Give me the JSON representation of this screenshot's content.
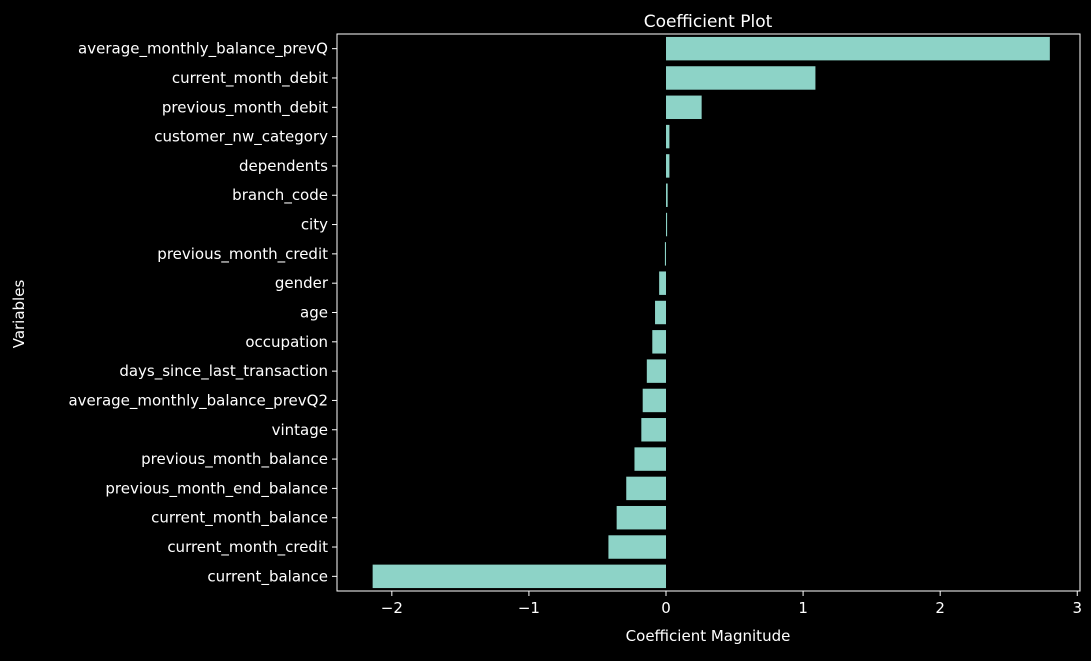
{
  "chart_data": {
    "type": "bar",
    "orientation": "horizontal",
    "title": "Coefficient Plot",
    "xlabel": "Coefficient Magnitude",
    "ylabel": "Variables",
    "xlim": [
      -2.4,
      3.02
    ],
    "xticks": [
      -2,
      -1,
      0,
      1,
      2,
      3
    ],
    "xtick_labels": [
      "−2",
      "−1",
      "0",
      "1",
      "2",
      "3"
    ],
    "grid": false,
    "legend": "none",
    "categories": [
      "average_monthly_balance_prevQ",
      "current_month_debit",
      "previous_month_debit",
      "customer_nw_category",
      "dependents",
      "branch_code",
      "city",
      "previous_month_credit",
      "gender",
      "age",
      "occupation",
      "days_since_last_transaction",
      "average_monthly_balance_prevQ2",
      "vintage",
      "previous_month_balance",
      "previous_month_end_balance",
      "current_month_balance",
      "current_month_credit",
      "current_balance"
    ],
    "values": [
      2.8,
      1.09,
      0.26,
      0.025,
      0.025,
      0.012,
      0.008,
      -0.008,
      -0.05,
      -0.08,
      -0.1,
      -0.14,
      -0.17,
      -0.18,
      -0.23,
      -0.29,
      -0.36,
      -0.42,
      -2.14
    ]
  },
  "colors": {
    "background": "#000000",
    "bar": "#8dd3c7",
    "axis": "#ffffff",
    "text": "#ffffff"
  }
}
